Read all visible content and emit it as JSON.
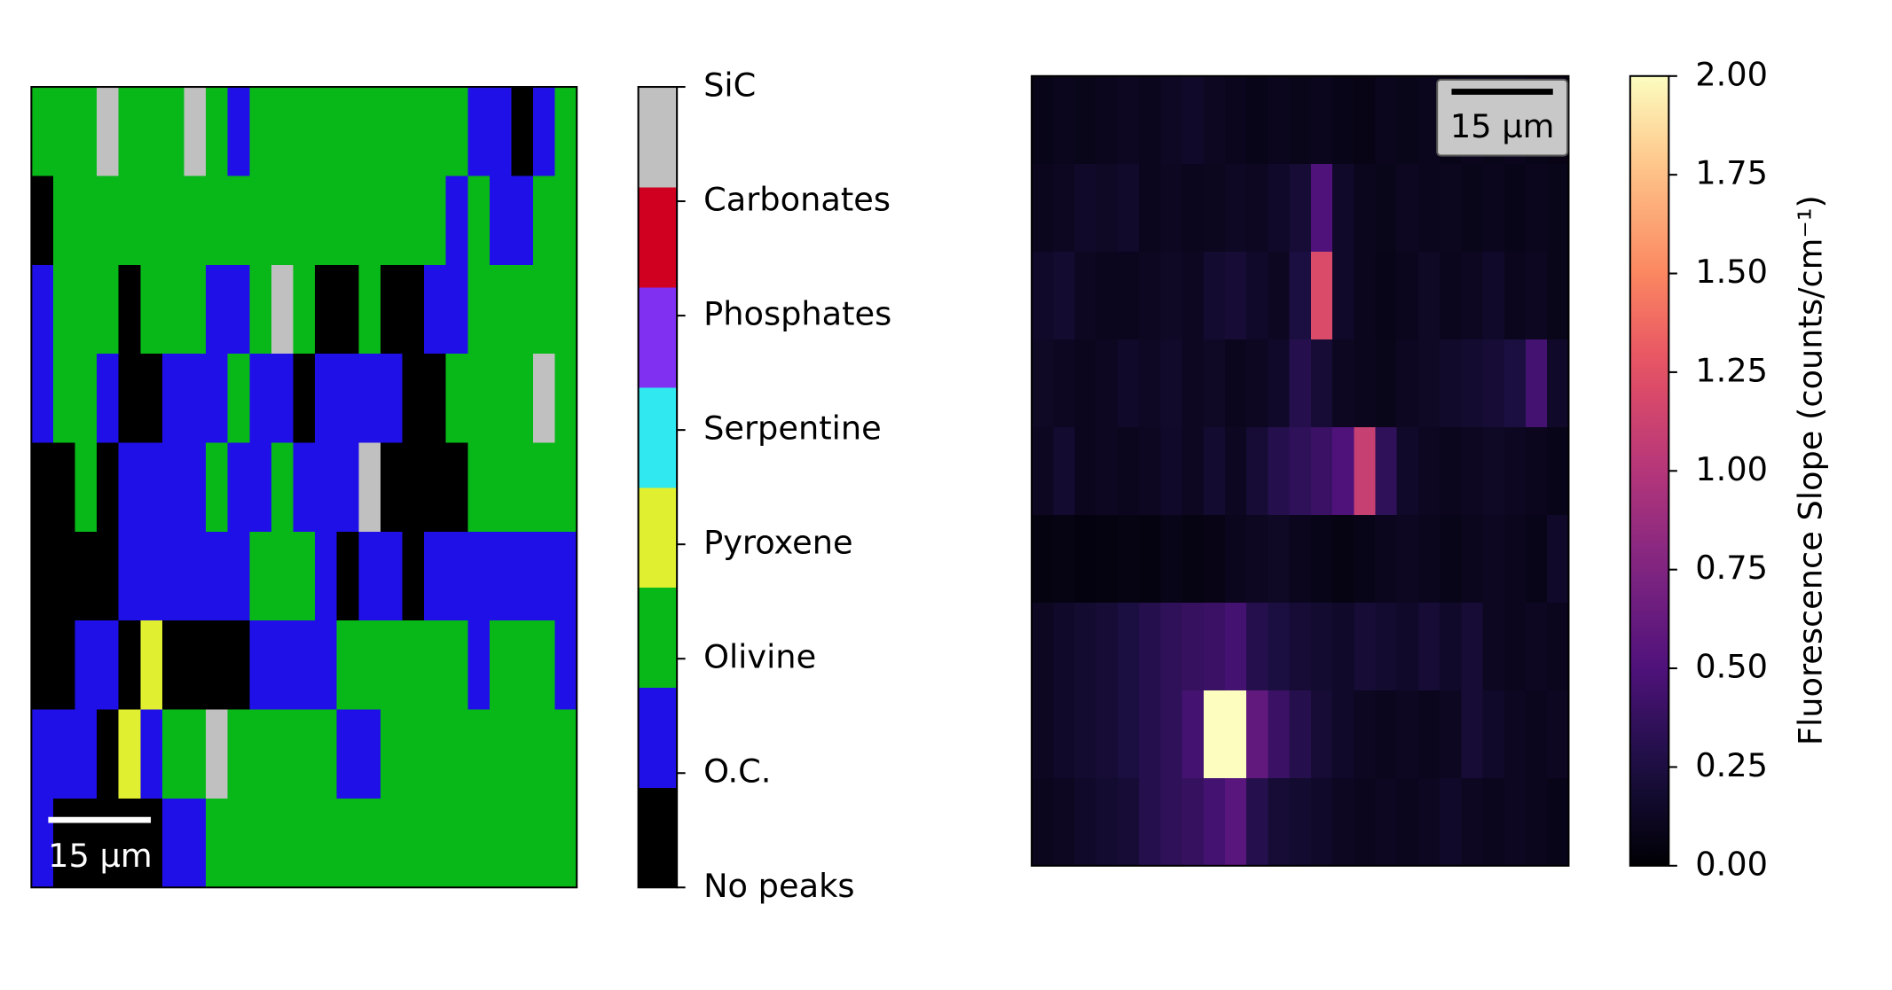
{
  "chart_data": [
    {
      "type": "heatmap",
      "classes": [
        "No peaks",
        "O.C.",
        "Olivine",
        "Pyroxene",
        "Serpentine",
        "Phosphates",
        "Carbonates",
        "SiC"
      ],
      "class_colors": [
        "#000000",
        "#2010e8",
        "#08b818",
        "#e0f030",
        "#30e8f0",
        "#8030f0",
        "#d00020",
        "#c0c0c0"
      ],
      "scale_bar": "15 µm",
      "values": [
        [
          2,
          2,
          2,
          7,
          2,
          2,
          2,
          7,
          2,
          1,
          2,
          2,
          2,
          2,
          2,
          2,
          2,
          2,
          2,
          2,
          1,
          1,
          0,
          1,
          2
        ],
        [
          0,
          2,
          2,
          2,
          2,
          2,
          2,
          2,
          2,
          2,
          2,
          2,
          2,
          2,
          2,
          2,
          2,
          2,
          2,
          1,
          2,
          1,
          1,
          2,
          2
        ],
        [
          1,
          2,
          2,
          2,
          0,
          2,
          2,
          2,
          1,
          1,
          2,
          7,
          2,
          0,
          0,
          2,
          0,
          0,
          1,
          1,
          2,
          2,
          2,
          2,
          2
        ],
        [
          1,
          2,
          2,
          1,
          0,
          0,
          1,
          1,
          1,
          2,
          1,
          1,
          0,
          1,
          1,
          1,
          1,
          0,
          0,
          2,
          2,
          2,
          2,
          7,
          2
        ],
        [
          0,
          0,
          2,
          0,
          1,
          1,
          1,
          1,
          2,
          1,
          1,
          2,
          1,
          1,
          1,
          7,
          0,
          0,
          0,
          0,
          2,
          2,
          2,
          2,
          2
        ],
        [
          0,
          0,
          0,
          0,
          1,
          1,
          1,
          1,
          1,
          1,
          2,
          2,
          2,
          1,
          0,
          1,
          1,
          0,
          1,
          1,
          1,
          1,
          1,
          1,
          1
        ],
        [
          0,
          0,
          1,
          1,
          0,
          3,
          0,
          0,
          0,
          0,
          1,
          1,
          1,
          1,
          2,
          2,
          2,
          2,
          2,
          2,
          1,
          2,
          2,
          2,
          1
        ],
        [
          1,
          1,
          1,
          0,
          3,
          1,
          2,
          2,
          7,
          2,
          2,
          2,
          2,
          2,
          1,
          1,
          2,
          2,
          2,
          2,
          2,
          2,
          2,
          2,
          2
        ],
        [
          1,
          0,
          0,
          0,
          0,
          0,
          1,
          1,
          2,
          2,
          2,
          2,
          2,
          2,
          2,
          2,
          2,
          2,
          2,
          2,
          2,
          2,
          2,
          2,
          2
        ]
      ]
    },
    {
      "type": "heatmap",
      "colormap": "magma",
      "zlim": [
        0,
        2
      ],
      "zticks": [
        {
          "value": 0,
          "label": "0.00"
        },
        {
          "value": 0.25,
          "label": "0.25"
        },
        {
          "value": 0.5,
          "label": "0.50"
        },
        {
          "value": 0.75,
          "label": "0.75"
        },
        {
          "value": 1,
          "label": "1.00"
        },
        {
          "value": 1.25,
          "label": "1.25"
        },
        {
          "value": 1.5,
          "label": "1.50"
        },
        {
          "value": 1.75,
          "label": "1.75"
        },
        {
          "value": 2,
          "label": "2.00"
        }
      ],
      "colorbar_label": "Fluorescence Slope (counts/cm⁻¹)",
      "scale_bar": "15 µm",
      "values": [
        [
          0.08,
          0.1,
          0.09,
          0.1,
          0.12,
          0.1,
          0.13,
          0.15,
          0.12,
          0.1,
          0.08,
          0.1,
          0.09,
          0.1,
          0.08,
          0.07,
          0.1,
          0.09,
          0.1,
          0.08,
          0.1,
          0.09,
          0.1,
          0.08,
          0.07
        ],
        [
          0.1,
          0.12,
          0.15,
          0.14,
          0.16,
          0.1,
          0.12,
          0.1,
          0.11,
          0.13,
          0.12,
          0.15,
          0.2,
          0.5,
          0.15,
          0.1,
          0.09,
          0.12,
          0.1,
          0.11,
          0.09,
          0.1,
          0.08,
          0.1,
          0.09
        ],
        [
          0.15,
          0.18,
          0.12,
          0.1,
          0.1,
          0.12,
          0.14,
          0.12,
          0.18,
          0.2,
          0.15,
          0.12,
          0.25,
          1.2,
          0.15,
          0.1,
          0.08,
          0.1,
          0.14,
          0.1,
          0.12,
          0.15,
          0.1,
          0.12,
          0.09
        ],
        [
          0.14,
          0.12,
          0.1,
          0.12,
          0.15,
          0.13,
          0.16,
          0.12,
          0.14,
          0.1,
          0.12,
          0.15,
          0.3,
          0.2,
          0.12,
          0.1,
          0.09,
          0.12,
          0.14,
          0.16,
          0.18,
          0.2,
          0.25,
          0.45,
          0.15
        ],
        [
          0.12,
          0.18,
          0.1,
          0.12,
          0.1,
          0.12,
          0.15,
          0.12,
          0.18,
          0.12,
          0.2,
          0.3,
          0.35,
          0.4,
          0.5,
          1.1,
          0.35,
          0.15,
          0.12,
          0.1,
          0.12,
          0.14,
          0.12,
          0.1,
          0.08
        ],
        [
          0.05,
          0.06,
          0.04,
          0.05,
          0.06,
          0.05,
          0.08,
          0.06,
          0.07,
          0.1,
          0.12,
          0.14,
          0.1,
          0.08,
          0.06,
          0.08,
          0.1,
          0.12,
          0.1,
          0.08,
          0.1,
          0.12,
          0.1,
          0.08,
          0.15
        ],
        [
          0.12,
          0.15,
          0.18,
          0.2,
          0.25,
          0.3,
          0.35,
          0.38,
          0.4,
          0.45,
          0.3,
          0.25,
          0.2,
          0.18,
          0.15,
          0.2,
          0.18,
          0.15,
          0.2,
          0.15,
          0.2,
          0.12,
          0.1,
          0.12,
          0.1
        ],
        [
          0.12,
          0.15,
          0.18,
          0.2,
          0.25,
          0.3,
          0.35,
          0.45,
          2.0,
          2.0,
          0.6,
          0.4,
          0.3,
          0.2,
          0.15,
          0.12,
          0.1,
          0.12,
          0.1,
          0.12,
          0.2,
          0.15,
          0.12,
          0.1,
          0.12
        ],
        [
          0.1,
          0.12,
          0.15,
          0.18,
          0.2,
          0.3,
          0.35,
          0.38,
          0.45,
          0.55,
          0.3,
          0.2,
          0.18,
          0.15,
          0.12,
          0.1,
          0.12,
          0.1,
          0.12,
          0.15,
          0.12,
          0.1,
          0.12,
          0.1,
          0.08
        ]
      ]
    }
  ]
}
